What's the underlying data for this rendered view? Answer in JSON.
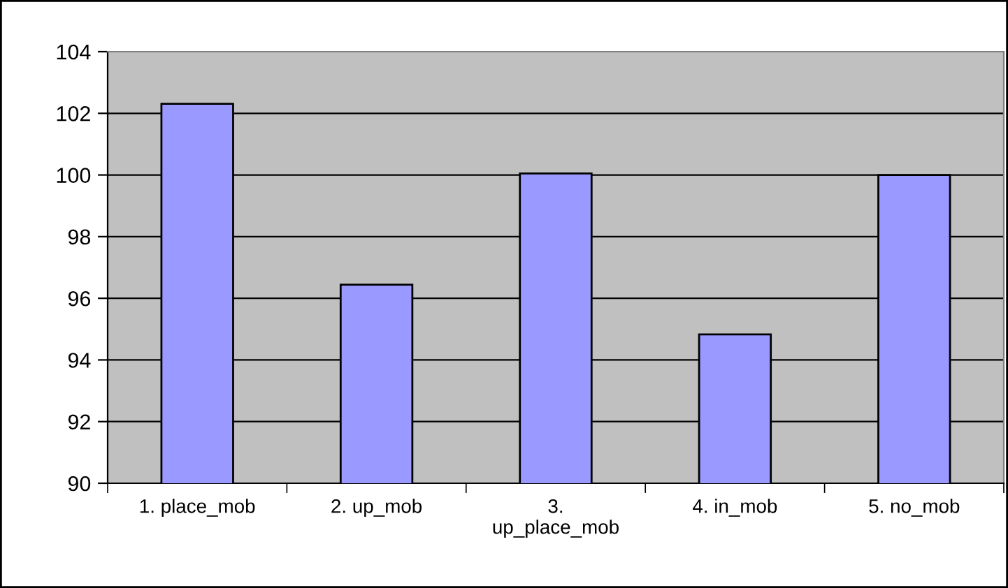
{
  "chart_data": {
    "type": "bar",
    "categories": [
      "1. place_mob",
      "2. up_mob",
      "3. up_place_mob",
      "4. in_mob",
      "5. no_mob"
    ],
    "values": [
      102.31,
      96.44,
      100.05,
      94.83,
      100.0
    ],
    "color": "#9999ff",
    "ylim": [
      90,
      104
    ],
    "yticks": [
      90,
      92,
      94,
      96,
      98,
      100,
      102,
      104
    ],
    "grid": "y",
    "legend": false
  }
}
